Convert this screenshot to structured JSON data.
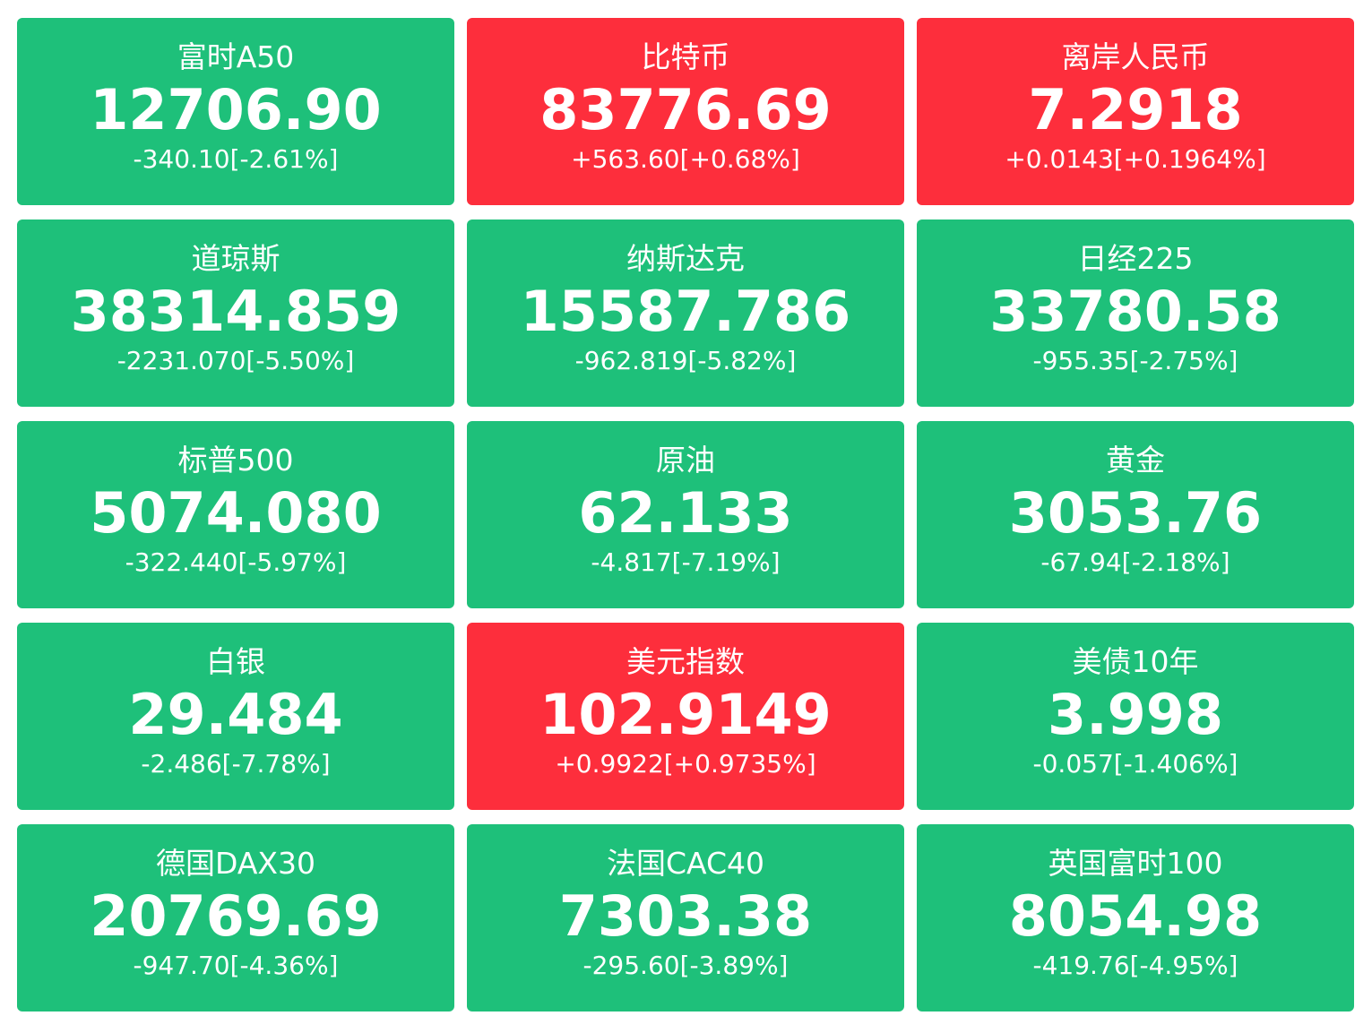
{
  "colors": {
    "down": "#1ec07a",
    "up": "#fd2e3c",
    "text": "#ffffff"
  },
  "tiles": [
    {
      "name": "富时A50",
      "price": "12706.90",
      "change": "-340.10[-2.61%]",
      "direction": "down"
    },
    {
      "name": "比特币",
      "price": "83776.69",
      "change": "+563.60[+0.68%]",
      "direction": "up"
    },
    {
      "name": "离岸人民币",
      "price": "7.2918",
      "change": "+0.0143[+0.1964%]",
      "direction": "up"
    },
    {
      "name": "道琼斯",
      "price": "38314.859",
      "change": "-2231.070[-5.50%]",
      "direction": "down"
    },
    {
      "name": "纳斯达克",
      "price": "15587.786",
      "change": "-962.819[-5.82%]",
      "direction": "down"
    },
    {
      "name": "日经225",
      "price": "33780.58",
      "change": "-955.35[-2.75%]",
      "direction": "down"
    },
    {
      "name": "标普500",
      "price": "5074.080",
      "change": "-322.440[-5.97%]",
      "direction": "down"
    },
    {
      "name": "原油",
      "price": "62.133",
      "change": "-4.817[-7.19%]",
      "direction": "down"
    },
    {
      "name": "黄金",
      "price": "3053.76",
      "change": "-67.94[-2.18%]",
      "direction": "down"
    },
    {
      "name": "白银",
      "price": "29.484",
      "change": "-2.486[-7.78%]",
      "direction": "down"
    },
    {
      "name": "美元指数",
      "price": "102.9149",
      "change": "+0.9922[+0.9735%]",
      "direction": "up"
    },
    {
      "name": "美债10年",
      "price": "3.998",
      "change": "-0.057[-1.406%]",
      "direction": "down"
    },
    {
      "name": "德国DAX30",
      "price": "20769.69",
      "change": "-947.70[-4.36%]",
      "direction": "down"
    },
    {
      "name": "法国CAC40",
      "price": "7303.38",
      "change": "-295.60[-3.89%]",
      "direction": "down"
    },
    {
      "name": "英国富时100",
      "price": "8054.98",
      "change": "-419.76[-4.95%]",
      "direction": "down"
    }
  ]
}
